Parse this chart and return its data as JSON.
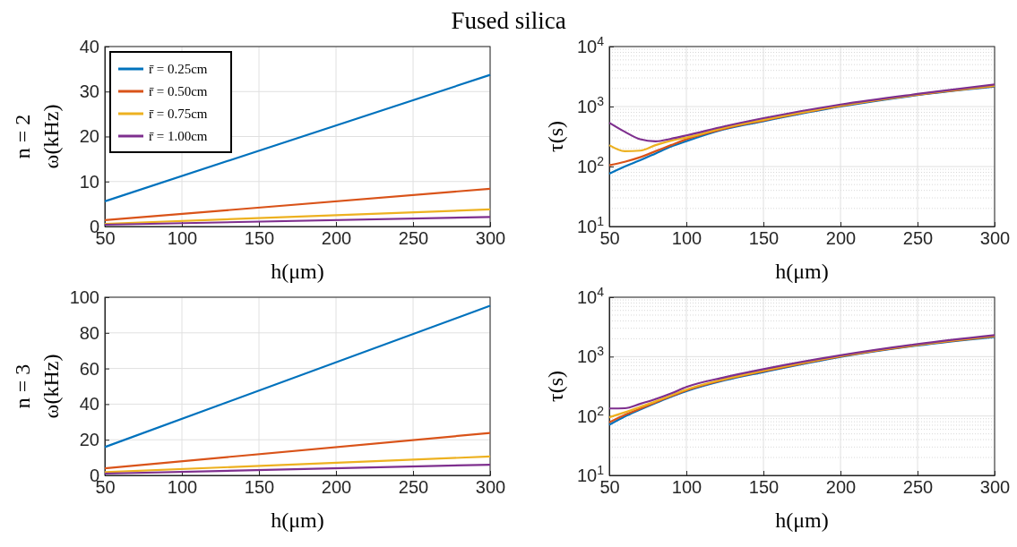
{
  "chart_data": [
    {
      "type": "line",
      "title": "Fused silica",
      "xlabel": "h(μm)",
      "ylabel": "ω(kHz)",
      "annotations": [
        "n = 2"
      ],
      "x": [
        50,
        300
      ],
      "xlim": [
        50,
        300
      ],
      "xticks": [
        50,
        100,
        150,
        200,
        250,
        300
      ],
      "ylim": [
        0,
        40
      ],
      "yticks": [
        0,
        10,
        20,
        30,
        40
      ],
      "grid": true,
      "legend": "top left",
      "series": [
        {
          "name": "r̄ = 0.25cm",
          "color": "#0072bd",
          "values": [
            5.6,
            33.7
          ]
        },
        {
          "name": "r̄ = 0.50cm",
          "color": "#d95319",
          "values": [
            1.4,
            8.4
          ]
        },
        {
          "name": "r̄ = 0.75cm",
          "color": "#edb120",
          "values": [
            0.6,
            3.8
          ]
        },
        {
          "name": "r̄ = 1.00cm",
          "color": "#7e2f8e",
          "values": [
            0.4,
            2.1
          ]
        }
      ]
    },
    {
      "type": "line",
      "xlabel": "h(μm)",
      "ylabel": "τ(s)",
      "log": "y",
      "x": [
        50,
        60,
        70,
        80,
        90,
        100,
        125,
        150,
        200,
        250,
        300
      ],
      "xlim": [
        50,
        300
      ],
      "xticks": [
        50,
        100,
        150,
        200,
        250,
        300
      ],
      "ylim": [
        10,
        10000
      ],
      "yticks": [
        {
          "value": 10,
          "label": "10$^{1}$"
        },
        {
          "value": 100,
          "label": "10$^{2}$"
        },
        {
          "value": 1000,
          "label": "10$^{3}$"
        },
        {
          "value": 10000,
          "label": "10$^{4}$"
        }
      ],
      "grid": true,
      "series": [
        {
          "color": "#0072bd",
          "values": [
            76,
            100,
            127,
            165,
            215,
            265,
            420,
            570,
            1000,
            1550,
            2150
          ]
        },
        {
          "color": "#d95319",
          "values": [
            105,
            120,
            143,
            180,
            227,
            285,
            430,
            585,
            1020,
            1570,
            2190
          ]
        },
        {
          "color": "#edb120",
          "values": [
            227,
            180,
            184,
            227,
            270,
            305,
            445,
            600,
            1040,
            1590,
            2230
          ]
        },
        {
          "color": "#7e2f8e",
          "values": [
            537,
            380,
            285,
            263,
            290,
            330,
            470,
            640,
            1080,
            1620,
            2330
          ]
        }
      ]
    },
    {
      "type": "line",
      "xlabel": "h(μm)",
      "ylabel": "ω(kHz)",
      "annotations": [
        "n = 3"
      ],
      "x": [
        50,
        300
      ],
      "xlim": [
        50,
        300
      ],
      "xticks": [
        50,
        100,
        150,
        200,
        250,
        300
      ],
      "ylim": [
        0,
        100
      ],
      "yticks": [
        0,
        20,
        40,
        60,
        80,
        100
      ],
      "grid": true,
      "series": [
        {
          "color": "#0072bd",
          "values": [
            15.9,
            95.2
          ]
        },
        {
          "color": "#d95319",
          "values": [
            4.0,
            23.8
          ]
        },
        {
          "color": "#edb120",
          "values": [
            1.8,
            10.6
          ]
        },
        {
          "color": "#7e2f8e",
          "values": [
            1.0,
            6.0
          ]
        }
      ]
    },
    {
      "type": "line",
      "xlabel": "h(μm)",
      "ylabel": "τ(s)",
      "log": "y",
      "x": [
        50,
        60,
        70,
        80,
        90,
        100,
        125,
        150,
        200,
        250,
        300
      ],
      "xlim": [
        50,
        300
      ],
      "xticks": [
        50,
        100,
        150,
        200,
        250,
        300
      ],
      "ylim": [
        10,
        10000
      ],
      "yticks": [
        {
          "value": 10,
          "label": "10$^{1}$"
        },
        {
          "value": 100,
          "label": "10$^{2}$"
        },
        {
          "value": 1000,
          "label": "10$^{3}$"
        },
        {
          "value": 10000,
          "label": "10$^{4}$"
        }
      ],
      "grid": true,
      "series": [
        {
          "color": "#0072bd",
          "values": [
            71,
            98,
            128,
            165,
            210,
            262,
            400,
            550,
            990,
            1540,
            2150
          ]
        },
        {
          "color": "#d95319",
          "values": [
            78,
            104,
            133,
            170,
            216,
            270,
            410,
            565,
            1010,
            1560,
            2190
          ]
        },
        {
          "color": "#edb120",
          "values": [
            95,
            115,
            142,
            176,
            222,
            278,
            420,
            580,
            1025,
            1580,
            2230
          ]
        },
        {
          "color": "#7e2f8e",
          "values": [
            134,
            135,
            160,
            193,
            240,
            308,
            450,
            615,
            1050,
            1620,
            2290
          ]
        }
      ]
    }
  ]
}
